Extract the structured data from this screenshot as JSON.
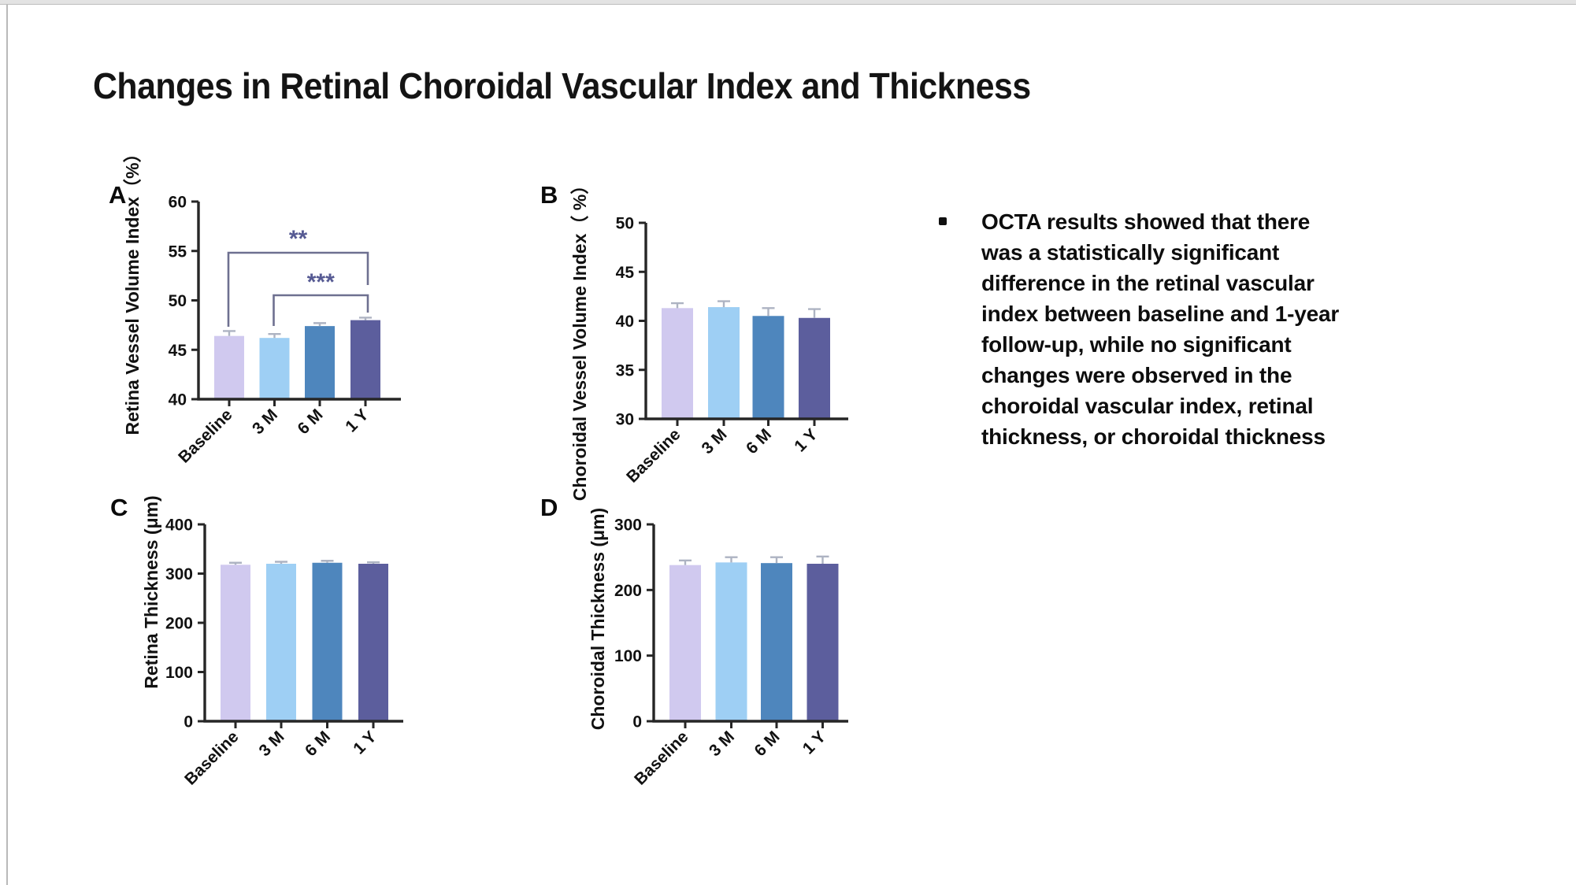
{
  "page": {
    "title": "Changes in Retinal Choroidal Vascular Index and Thickness"
  },
  "bullet": {
    "marker": "•",
    "lines": [
      "OCTA results showed that there",
      "was a statistically significant",
      "difference in the retinal vascular",
      "index between baseline and 1-year",
      "follow-up, while no significant",
      "changes were observed in the",
      "choroidal vascular index, retinal",
      "thickness, or choroidal thickness"
    ]
  },
  "palette": {
    "bar_colors": [
      "#d0c9ef",
      "#9ecff4",
      "#4e86bd",
      "#5c5e9d"
    ],
    "axis_color": "#262626",
    "error_bar_color": "#adb3c2",
    "bracket_color": "#6e7090",
    "star_color": "#565a93",
    "text_color": "#111111"
  },
  "chart_data": [
    {
      "id": "A",
      "type": "bar",
      "panel_label": "A",
      "ylabel": "Retina Vessel Volume Index（%）",
      "ylim": [
        40,
        60
      ],
      "yticks": [
        40,
        45,
        50,
        55,
        60
      ],
      "categories": [
        "Baseline",
        "3 M",
        "6 M",
        "1 Y"
      ],
      "values": [
        46.4,
        46.2,
        47.4,
        48.0
      ],
      "errors": [
        0.5,
        0.4,
        0.3,
        0.25
      ],
      "significance": [
        {
          "groups": [
            "Baseline",
            "1 Y"
          ],
          "label": "**"
        },
        {
          "groups": [
            "3 M",
            "1 Y"
          ],
          "label": "***"
        }
      ]
    },
    {
      "id": "B",
      "type": "bar",
      "panel_label": "B",
      "ylabel": "Choroidal Vessel Volume Index（ %）",
      "ylim": [
        30,
        50
      ],
      "yticks": [
        30,
        35,
        40,
        45,
        50
      ],
      "categories": [
        "Baseline",
        "3 M",
        "6 M",
        "1 Y"
      ],
      "values": [
        41.3,
        41.4,
        40.5,
        40.3
      ],
      "errors": [
        0.5,
        0.6,
        0.8,
        0.9
      ],
      "significance": []
    },
    {
      "id": "C",
      "type": "bar",
      "panel_label": "C",
      "ylabel": "Retina Thickness (μm)",
      "ylim": [
        0,
        400
      ],
      "yticks": [
        0,
        100,
        200,
        300,
        400
      ],
      "categories": [
        "Baseline",
        "3 M",
        "6 M",
        "1 Y"
      ],
      "values": [
        318,
        320,
        322,
        320
      ],
      "errors": [
        4,
        4,
        4,
        3
      ],
      "significance": []
    },
    {
      "id": "D",
      "type": "bar",
      "panel_label": "D",
      "ylabel": "Choroidal Thickness (μm)",
      "ylim": [
        0,
        300
      ],
      "yticks": [
        0,
        100,
        200,
        300
      ],
      "categories": [
        "Baseline",
        "3 M",
        "6 M",
        "1 Y"
      ],
      "values": [
        238,
        242,
        241,
        240
      ],
      "errors": [
        7,
        8,
        9,
        11
      ],
      "significance": []
    }
  ]
}
